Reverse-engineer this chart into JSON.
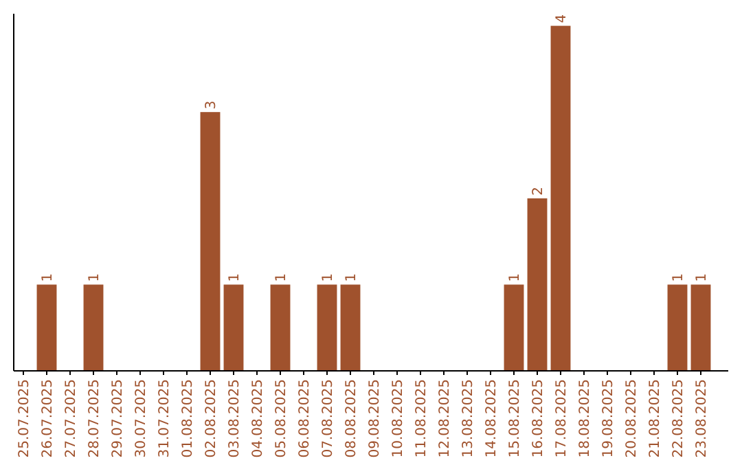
{
  "chart_data": {
    "type": "bar",
    "categories": [
      "25.07.2025",
      "26.07.2025",
      "27.07.2025",
      "28.07.2025",
      "29.07.2025",
      "30.07.2025",
      "31.07.2025",
      "01.08.2025",
      "02.08.2025",
      "03.08.2025",
      "04.08.2025",
      "05.08.2025",
      "06.08.2025",
      "07.08.2025",
      "08.08.2025",
      "09.08.2025",
      "10.08.2025",
      "11.08.2025",
      "12.08.2025",
      "13.08.2025",
      "14.08.2025",
      "15.08.2025",
      "16.08.2025",
      "17.08.2025",
      "18.08.2025",
      "19.08.2025",
      "20.08.2025",
      "21.08.2025",
      "22.08.2025",
      "23.08.2025"
    ],
    "values": [
      0,
      1,
      0,
      1,
      0,
      0,
      0,
      0,
      3,
      1,
      0,
      1,
      0,
      1,
      1,
      0,
      0,
      0,
      0,
      0,
      0,
      1,
      2,
      4,
      0,
      0,
      0,
      0,
      1,
      1
    ],
    "value_labels": [
      null,
      "1",
      null,
      "1",
      null,
      null,
      null,
      null,
      "3",
      "1",
      null,
      "1",
      null,
      "1",
      "1",
      null,
      null,
      null,
      null,
      null,
      null,
      "1",
      "2",
      "4",
      null,
      null,
      null,
      null,
      "1",
      "1"
    ],
    "color": "#a0522d",
    "tick_labels": "x"
  }
}
